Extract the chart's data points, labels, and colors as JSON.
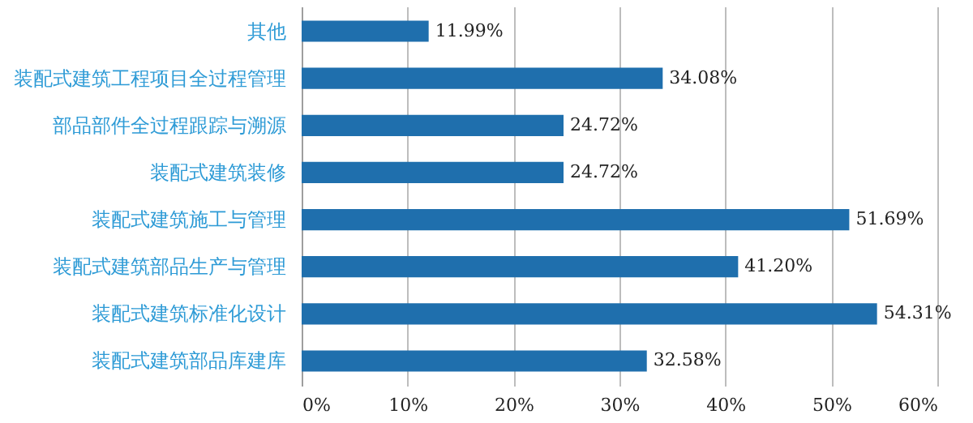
{
  "chart_data": {
    "type": "bar",
    "orientation": "horizontal",
    "categories": [
      "其他",
      "装配式建筑工程项目全过程管理",
      "部品部件全过程跟踪与溯源",
      "装配式建筑装修",
      "装配式建筑施工与管理",
      "装配式建筑部品生产与管理",
      "装配式建筑标准化设计",
      "装配式建筑部品库建库"
    ],
    "values": [
      11.99,
      34.08,
      24.72,
      24.72,
      51.69,
      41.2,
      54.31,
      32.58
    ],
    "value_labels": [
      "11.99%",
      "34.08%",
      "24.72%",
      "24.72%",
      "51.69%",
      "41.20%",
      "54.31%",
      "32.58%"
    ],
    "color": "#1f6fad",
    "xlim": [
      0,
      60
    ],
    "xticks": [
      {
        "value": 0,
        "label": "0%"
      },
      {
        "value": 10,
        "label": "10%"
      },
      {
        "value": 20,
        "label": "20%"
      },
      {
        "value": 30,
        "label": "30%"
      },
      {
        "value": 40,
        "label": "40%"
      },
      {
        "value": 50,
        "label": "50%"
      },
      {
        "value": 60,
        "label": "60%"
      }
    ],
    "grid": "x"
  }
}
